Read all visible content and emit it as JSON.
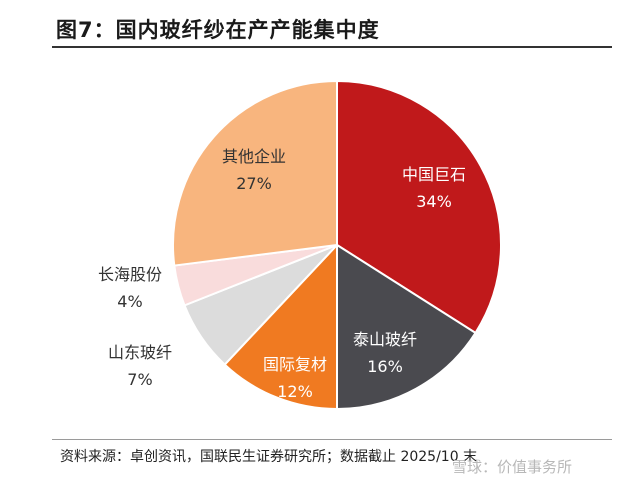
{
  "title": "图7：国内玻纤纱在产产能集中度",
  "source": "资料来源：卓创资讯，国联民生证券研究所；数据截止 2025/10 末",
  "watermark": "雪球：价值事务所",
  "chart_data": {
    "type": "pie",
    "title": "图7：国内玻纤纱在产产能集中度",
    "slices": [
      {
        "label": "中国巨石",
        "value": 34,
        "pct_label": "34%",
        "color": "#c0191b",
        "label_color": "#ffffff"
      },
      {
        "label": "泰山玻纤",
        "value": 16,
        "pct_label": "16%",
        "color": "#4a4a4f",
        "label_color": "#ffffff"
      },
      {
        "label": "国际复材",
        "value": 12,
        "pct_label": "12%",
        "color": "#f07a21",
        "label_color": "#ffffff"
      },
      {
        "label": "山东玻纤",
        "value": 7,
        "pct_label": "7%",
        "color": "#dcdcdc",
        "label_color": "#333333"
      },
      {
        "label": "长海股份",
        "value": 4,
        "pct_label": "4%",
        "color": "#f9dcdc",
        "label_color": "#333333"
      },
      {
        "label": "其他企业",
        "value": 27,
        "pct_label": "27%",
        "color": "#f8b57e",
        "label_color": "#333333"
      }
    ]
  }
}
